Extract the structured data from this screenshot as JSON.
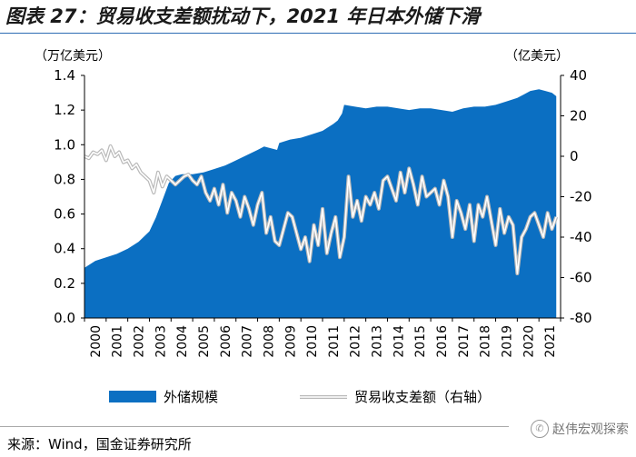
{
  "figure": {
    "title": "图表 27：贸易收支差额扰动下，2021 年日本外储下滑",
    "source": "来源：Wind，国金证券研究所",
    "watermark": "赵伟宏观探索",
    "watermark_icon": "wechat-icon"
  },
  "colors": {
    "area_fill": "#0b6fc2",
    "line_outer": "#b9b9b9",
    "line_inner": "#ffffff",
    "axis": "#000000",
    "title_rule": "#2e6db4"
  },
  "chart_data": {
    "type": "area+line",
    "left_axis": {
      "unit_label": "（万亿美元）",
      "ylim": [
        0,
        1.4
      ],
      "ticks": [
        "0.0",
        "0.2",
        "0.4",
        "0.6",
        "0.8",
        "1.0",
        "1.2",
        "1.4"
      ],
      "tick_values": [
        0,
        0.2,
        0.4,
        0.6,
        0.8,
        1.0,
        1.2,
        1.4
      ]
    },
    "right_axis": {
      "unit_label": "（亿美元）",
      "ylim": [
        -80,
        40
      ],
      "ticks": [
        "-80",
        "-60",
        "-40",
        "-20",
        "0",
        "20",
        "40"
      ],
      "tick_values": [
        -80,
        -60,
        -40,
        -20,
        0,
        20,
        40
      ]
    },
    "x_range": [
      2000,
      2022
    ],
    "x_ticks": [
      "2000",
      "2001",
      "2002",
      "2003",
      "2004",
      "2005",
      "2006",
      "2007",
      "2008",
      "2009",
      "2010",
      "2011",
      "2012",
      "2013",
      "2014",
      "2015",
      "2016",
      "2017",
      "2018",
      "2019",
      "2020",
      "2021"
    ],
    "legend": [
      "外储规模",
      "贸易收支差额（右轴）"
    ],
    "series": [
      {
        "name": "外储规模",
        "axis": "left",
        "kind": "area",
        "x": [
          2000.0,
          2000.5,
          2001.0,
          2001.5,
          2002.0,
          2002.5,
          2003.0,
          2003.3,
          2003.6,
          2003.9,
          2004.2,
          2004.5,
          2005.0,
          2005.5,
          2006.0,
          2006.5,
          2007.0,
          2007.5,
          2008.0,
          2008.3,
          2008.6,
          2008.9,
          2009.0,
          2009.5,
          2010.0,
          2010.5,
          2011.0,
          2011.5,
          2011.7,
          2011.9,
          2012.0,
          2012.5,
          2013.0,
          2013.5,
          2014.0,
          2014.5,
          2015.0,
          2015.5,
          2016.0,
          2016.5,
          2017.0,
          2017.5,
          2018.0,
          2018.5,
          2019.0,
          2019.5,
          2020.0,
          2020.3,
          2020.6,
          2021.0,
          2021.3,
          2021.6,
          2021.8
        ],
        "values": [
          0.29,
          0.33,
          0.35,
          0.37,
          0.4,
          0.44,
          0.5,
          0.58,
          0.68,
          0.78,
          0.82,
          0.83,
          0.83,
          0.84,
          0.86,
          0.88,
          0.91,
          0.94,
          0.97,
          0.99,
          0.98,
          0.97,
          1.01,
          1.03,
          1.04,
          1.06,
          1.08,
          1.12,
          1.14,
          1.18,
          1.23,
          1.22,
          1.21,
          1.22,
          1.22,
          1.21,
          1.2,
          1.21,
          1.21,
          1.2,
          1.19,
          1.21,
          1.22,
          1.22,
          1.23,
          1.25,
          1.27,
          1.29,
          1.31,
          1.32,
          1.31,
          1.3,
          1.28
        ]
      },
      {
        "name": "贸易收支差额（右轴）",
        "axis": "right",
        "kind": "line",
        "x": [
          2000.0,
          2000.2,
          2000.4,
          2000.6,
          2000.8,
          2001.0,
          2001.2,
          2001.4,
          2001.6,
          2001.8,
          2002.0,
          2002.2,
          2002.4,
          2002.6,
          2002.8,
          2003.0,
          2003.2,
          2003.4,
          2003.6,
          2003.8,
          2004.0,
          2004.2,
          2004.4,
          2004.6,
          2004.8,
          2005.0,
          2005.2,
          2005.4,
          2005.6,
          2005.8,
          2006.0,
          2006.2,
          2006.4,
          2006.6,
          2006.8,
          2007.0,
          2007.2,
          2007.4,
          2007.6,
          2007.8,
          2008.0,
          2008.2,
          2008.4,
          2008.6,
          2008.8,
          2009.0,
          2009.2,
          2009.4,
          2009.6,
          2009.8,
          2010.0,
          2010.2,
          2010.4,
          2010.6,
          2010.8,
          2011.0,
          2011.2,
          2011.4,
          2011.6,
          2011.8,
          2012.0,
          2012.2,
          2012.4,
          2012.6,
          2012.8,
          2013.0,
          2013.2,
          2013.4,
          2013.6,
          2013.8,
          2014.0,
          2014.2,
          2014.4,
          2014.6,
          2014.8,
          2015.0,
          2015.2,
          2015.4,
          2015.6,
          2015.8,
          2016.0,
          2016.2,
          2016.4,
          2016.6,
          2016.8,
          2017.0,
          2017.2,
          2017.4,
          2017.6,
          2017.8,
          2018.0,
          2018.2,
          2018.4,
          2018.6,
          2018.8,
          2019.0,
          2019.2,
          2019.4,
          2019.6,
          2019.8,
          2020.0,
          2020.2,
          2020.4,
          2020.6,
          2020.8,
          2021.0,
          2021.2,
          2021.4,
          2021.6,
          2021.8
        ],
        "values": [
          0,
          -1,
          2,
          1,
          3,
          -2,
          5,
          0,
          2,
          -3,
          -2,
          -6,
          -4,
          -8,
          -10,
          -12,
          -18,
          -8,
          -15,
          -10,
          -12,
          -14,
          -12,
          -10,
          -9,
          -12,
          -14,
          -10,
          -18,
          -22,
          -16,
          -24,
          -14,
          -28,
          -18,
          -22,
          -30,
          -20,
          -26,
          -34,
          -24,
          -18,
          -38,
          -30,
          -42,
          -44,
          -36,
          -28,
          -30,
          -38,
          -46,
          -40,
          -52,
          -34,
          -44,
          -26,
          -48,
          -38,
          -30,
          -50,
          -40,
          -10,
          -30,
          -22,
          -32,
          -20,
          -24,
          -18,
          -26,
          -12,
          -10,
          -16,
          -22,
          -8,
          -18,
          -6,
          -14,
          -24,
          -10,
          -20,
          -18,
          -16,
          -24,
          -12,
          -20,
          -40,
          -22,
          -28,
          -36,
          -24,
          -42,
          -24,
          -30,
          -20,
          -32,
          -44,
          -26,
          -38,
          -30,
          -34,
          -58,
          -40,
          -36,
          -30,
          -28,
          -34,
          -40,
          -28,
          -36,
          -30
        ]
      }
    ]
  }
}
